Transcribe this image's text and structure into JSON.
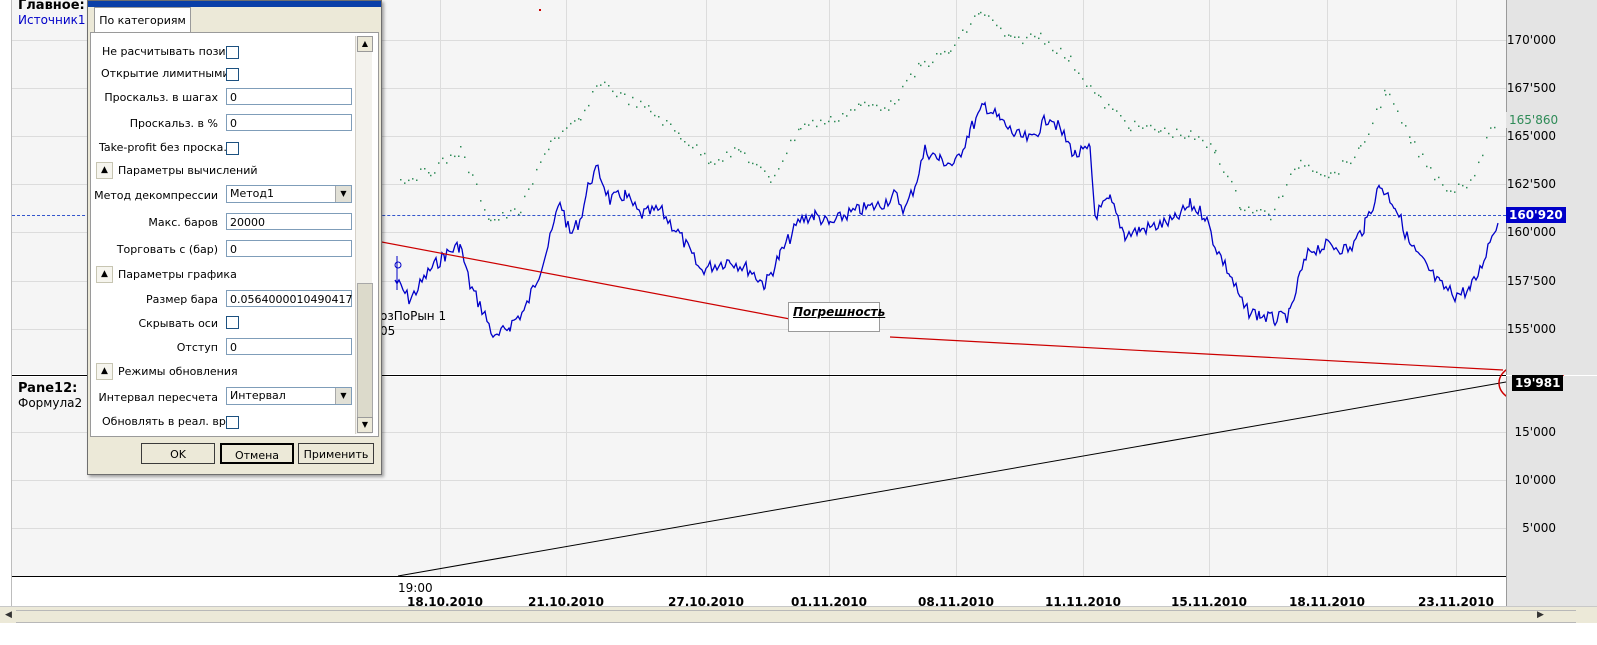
{
  "main_pane": {
    "title": "Главное:",
    "source": "Источник1",
    "y_ticks": [
      "170'000",
      "167'500",
      "165'000",
      "162'500",
      "160'000",
      "157'500",
      "155'000"
    ],
    "last_price_badge": "160'920",
    "green_price_badge": "165'860",
    "partial_label_line1": "озПоРын 1",
    "partial_label_line2": "05"
  },
  "lower_pane": {
    "title": "Pane12:",
    "formula": "Формула2",
    "y_ticks": [
      "15'000",
      "10'000",
      "5'000"
    ],
    "value_badge": "19'981"
  },
  "x_axis": {
    "time_label": "19:00",
    "dates": [
      "18.10.2010",
      "21.10.2010",
      "27.10.2010",
      "01.11.2010",
      "08.11.2010",
      "11.11.2010",
      "15.11.2010",
      "18.11.2010",
      "23.11.2010"
    ]
  },
  "annotation": {
    "text": "Погрешность"
  },
  "dialog": {
    "tab": "По категориям",
    "rows": {
      "no_calc_pos": "Не расчитывать пози...",
      "limit_open": "Открытие лимитными...",
      "slip_steps_label": "Проскальз. в шагах",
      "slip_steps_value": "0",
      "slip_pct_label": "Проскальз. в %",
      "slip_pct_value": "0",
      "tp_no_slip": "Take-profit без проска...",
      "section_calc": "Параметры вычислений",
      "decompress_label": "Метод декомпрессии",
      "decompress_value": "Метод1",
      "max_bars_label": "Макс. баров",
      "max_bars_value": "20000",
      "trade_from_label": "Торговать с (бар)",
      "trade_from_value": "0",
      "section_chart": "Параметры графика",
      "bar_size_label": "Размер бара",
      "bar_size_value": "0.0564000010490417",
      "hide_axes_label": "Скрывать оси",
      "indent_label": "Отступ",
      "indent_value": "0",
      "section_update": "Режимы обновления",
      "recalc_interval_label": "Интервал пересчета",
      "recalc_interval_value": "Интервал",
      "realtime_label": "Обновлять в реал. вр..."
    },
    "buttons": {
      "ok": "OK",
      "cancel": "Отмена",
      "apply": "Применить"
    }
  },
  "colors": {
    "price_line": "#0000c8",
    "green_dots": "#2e8b57",
    "annotation": "#d40000",
    "reference_line": "#3355cc"
  }
}
